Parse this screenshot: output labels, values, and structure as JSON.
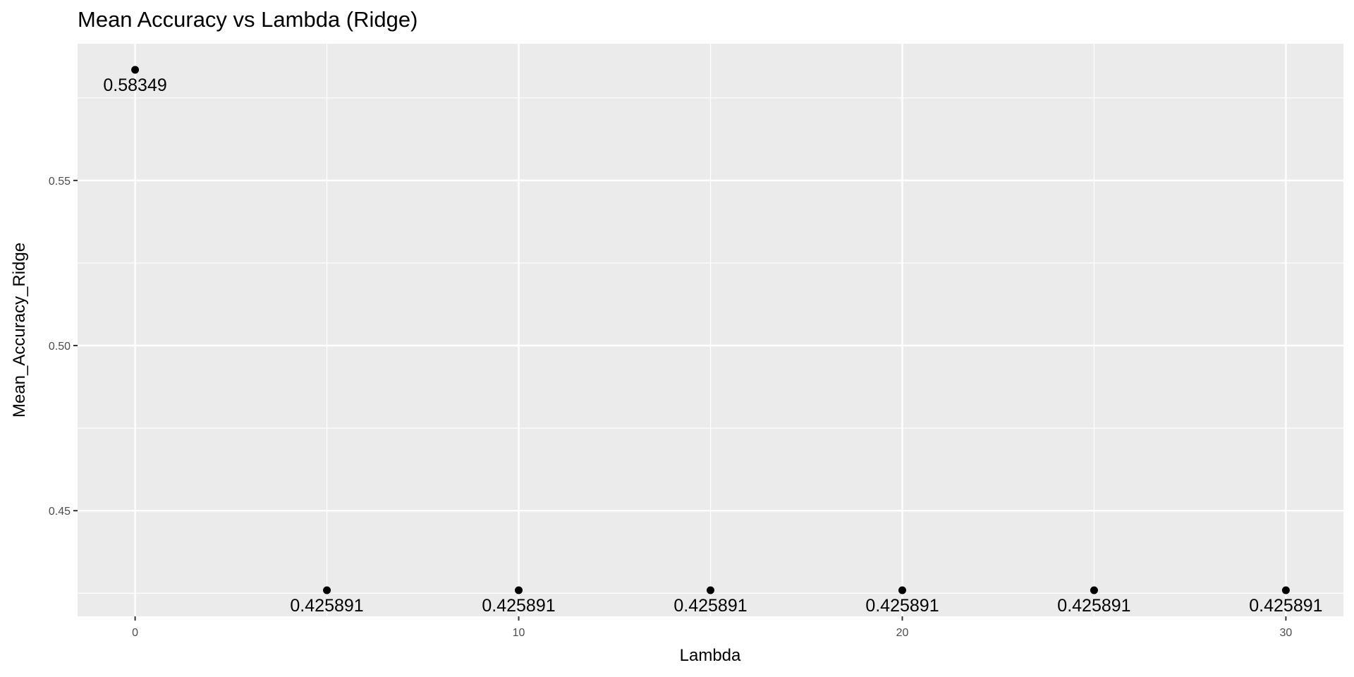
{
  "chart_data": {
    "type": "scatter",
    "title": "Mean Accuracy vs Lambda (Ridge)",
    "xlabel": "Lambda",
    "ylabel": "Mean_Accuracy_Ridge",
    "x": [
      0,
      5,
      10,
      15,
      20,
      25,
      30
    ],
    "y": [
      0.58349,
      0.425891,
      0.425891,
      0.425891,
      0.425891,
      0.425891,
      0.425891
    ],
    "labels": [
      "0.58349",
      "0.425891",
      "0.425891",
      "0.425891",
      "0.425891",
      "0.425891",
      "0.425891"
    ],
    "xlim": [
      -1.5,
      31.5
    ],
    "ylim": [
      0.418,
      0.5914
    ],
    "x_ticks": [
      0,
      10,
      20,
      30
    ],
    "x_tick_labels": [
      "0",
      "10",
      "20",
      "30"
    ],
    "x_minor_ticks": [
      5,
      15,
      25
    ],
    "y_ticks": [
      0.45,
      0.5,
      0.55
    ],
    "y_tick_labels": [
      "0.45",
      "0.50",
      "0.55"
    ],
    "y_minor_ticks": [
      0.425,
      0.475,
      0.525,
      0.575
    ],
    "grid": true,
    "panel_color": "#ebebeb",
    "grid_color": "#ffffff",
    "point_color": "#000000"
  }
}
